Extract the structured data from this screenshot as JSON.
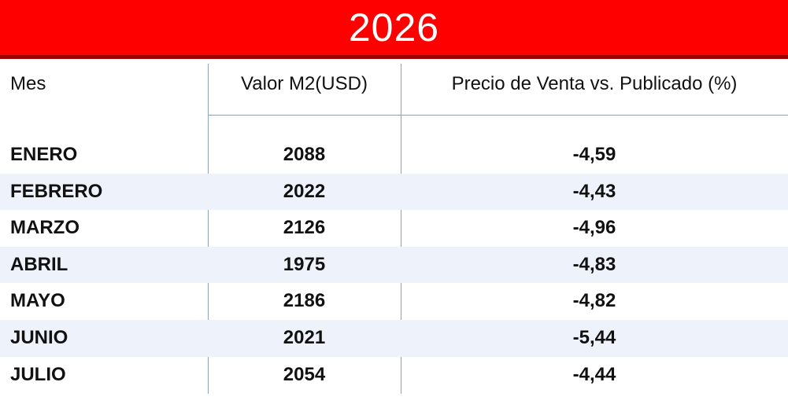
{
  "title": "2026",
  "colors": {
    "banner": "#ff0000",
    "banner_border": "#9a0000",
    "row_shade": "#eef2fb",
    "divider": "#8ea3b6"
  },
  "chart_data": {
    "type": "table",
    "title": "2026",
    "columns": [
      "Mes",
      "Valor M2(USD)",
      "Precio de Venta vs. Publicado (%)"
    ],
    "rows": [
      {
        "mes": "ENERO",
        "valor": "2088",
        "precio": "-4,59"
      },
      {
        "mes": "FEBRERO",
        "valor": "2022",
        "precio": "-4,43"
      },
      {
        "mes": "MARZO",
        "valor": "2126",
        "precio": "-4,96"
      },
      {
        "mes": "ABRIL",
        "valor": "1975",
        "precio": "-4,83"
      },
      {
        "mes": "MAYO",
        "valor": "2186",
        "precio": "-4,82"
      },
      {
        "mes": "JUNIO",
        "valor": "2021",
        "precio": "-5,44"
      },
      {
        "mes": "JULIO",
        "valor": "2054",
        "precio": "-4,44"
      }
    ]
  }
}
